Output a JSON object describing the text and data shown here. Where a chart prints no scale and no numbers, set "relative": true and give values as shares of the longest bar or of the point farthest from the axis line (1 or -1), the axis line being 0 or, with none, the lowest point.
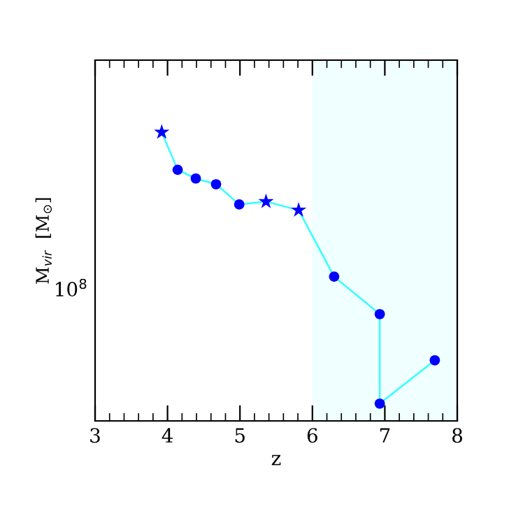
{
  "chart_data": {
    "type": "line",
    "xlabel": "z",
    "ylabel": "M$_{vir}$  [M$_{⊙}$]",
    "relative": true,
    "xlim": [
      3,
      8
    ],
    "xticks": [
      3,
      {
        "value": 3.2,
        "label": null
      },
      {
        "value": 3.4,
        "label": null
      },
      {
        "value": 3.6,
        "label": null
      },
      {
        "value": 3.8,
        "label": null
      },
      4,
      {
        "value": 4.2,
        "label": null
      },
      {
        "value": 4.4,
        "label": null
      },
      {
        "value": 4.6,
        "label": null
      },
      {
        "value": 4.8,
        "label": null
      },
      5,
      {
        "value": 5.2,
        "label": null
      },
      {
        "value": 5.4,
        "label": null
      },
      {
        "value": 5.6,
        "label": null
      },
      {
        "value": 5.8,
        "label": null
      },
      6,
      {
        "value": 6.2,
        "label": null
      },
      {
        "value": 6.4,
        "label": null
      },
      {
        "value": 6.6,
        "label": null
      },
      {
        "value": 6.8,
        "label": null
      },
      7,
      {
        "value": 7.2,
        "label": null
      },
      {
        "value": 7.4,
        "label": null
      },
      {
        "value": 7.6,
        "label": null
      },
      {
        "value": 7.8,
        "label": null
      },
      8
    ],
    "annotations": [
      "10$^{8}$"
    ],
    "bands": [
      {
        "axis": "x",
        "from": 6,
        "to": 8,
        "color": "#f0ffff"
      }
    ],
    "grid": false,
    "legend": false,
    "series": [
      {
        "marker": "none",
        "color": "#33ffff",
        "x": [
          3.92,
          4.14,
          4.39,
          4.67,
          4.99,
          5.36,
          5.81,
          6.3,
          6.93,
          6.93,
          7.69
        ],
        "values": [
          1,
          0.87,
          0.84,
          0.82,
          0.75,
          0.76,
          0.73,
          0.5,
          0.37,
          0.06,
          0.21
        ]
      },
      {
        "type": "scatter",
        "marker": "star",
        "color": "#0000ff",
        "x": [
          3.92,
          5.36,
          5.81
        ],
        "values": [
          1,
          0.76,
          0.73
        ]
      },
      {
        "type": "scatter",
        "marker": "circle",
        "color": "#0000ff",
        "x": [
          4.14,
          4.39,
          4.67,
          4.99,
          6.3,
          6.93,
          6.93,
          7.69
        ],
        "values": [
          0.87,
          0.84,
          0.82,
          0.75,
          0.5,
          0.37,
          0.06,
          0.21
        ]
      }
    ]
  }
}
